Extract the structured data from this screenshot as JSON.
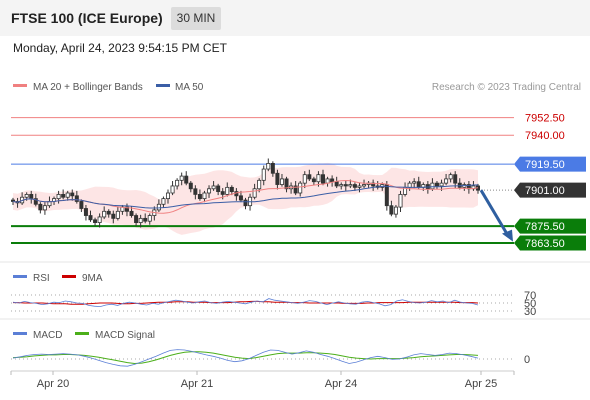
{
  "header": {
    "title": "FTSE 100 (ICE Europe)",
    "interval": "30 MIN"
  },
  "datetime": "Monday, April 24, 2023 9:54:15 PM CET",
  "legend": {
    "bb": "MA 20 + Bollinger Bands",
    "ma50": "MA 50",
    "copyright": "Research © 2023 Trading Central",
    "rsi": "RSI",
    "ma9": "9MA",
    "macd": "MACD",
    "macd_signal": "MACD Signal"
  },
  "colors": {
    "resistance": "#f08080",
    "resistance_text": "#cc0000",
    "pivot": "#4b7be5",
    "current": "#333333",
    "support": "#0a7d0a",
    "candle_up": "#333333",
    "candle_down": "#333333",
    "bollinger_fill": "#fde0e0",
    "ma20": "#f08080",
    "ma50": "#3b5ea6",
    "arrow": "#2f5fa0",
    "rsi": "#5b7fd6",
    "rsi_ma9": "#cc0000",
    "macd": "#5b7fd6",
    "macd_signal": "#4caf1a"
  },
  "chart_data": [
    {
      "type": "candlestick",
      "x_ticks": [
        "Apr 20",
        "Apr 21",
        "Apr 24",
        "Apr 25"
      ],
      "ylim": [
        7855,
        7965
      ],
      "levels": [
        {
          "label": "7952.50",
          "value": 7952.5,
          "kind": "resistance"
        },
        {
          "label": "7940.00",
          "value": 7940.0,
          "kind": "resistance"
        },
        {
          "label": "7919.50",
          "value": 7919.5,
          "kind": "pivot"
        },
        {
          "label": "7901.00",
          "value": 7901.0,
          "kind": "current"
        },
        {
          "label": "7875.50",
          "value": 7875.5,
          "kind": "support"
        },
        {
          "label": "7863.50",
          "value": 7863.5,
          "kind": "support"
        }
      ],
      "close": [
        7893,
        7892,
        7896,
        7898,
        7895,
        7891,
        7887,
        7890,
        7893,
        7895,
        7898,
        7896,
        7899,
        7897,
        7893,
        7888,
        7883,
        7880,
        7878,
        7882,
        7886,
        7884,
        7881,
        7886,
        7889,
        7886,
        7883,
        7878,
        7881,
        7879,
        7883,
        7887,
        7891,
        7895,
        7899,
        7904,
        7908,
        7911,
        7906,
        7902,
        7898,
        7895,
        7899,
        7902,
        7904,
        7900,
        7898,
        7903,
        7900,
        7897,
        7894,
        7890,
        7896,
        7902,
        7908,
        7916,
        7920,
        7913,
        7905,
        7909,
        7902,
        7904,
        7899,
        7906,
        7912,
        7909,
        7907,
        7912,
        7906,
        7909,
        7907,
        7904,
        7905,
        7904,
        7905,
        7903,
        7904,
        7905,
        7906,
        7904,
        7903,
        7905,
        7890,
        7884,
        7889,
        7898,
        7903,
        7906,
        7907,
        7903,
        7905,
        7902,
        7906,
        7904,
        7906,
        7909,
        7912,
        7906,
        7903,
        7905,
        7902,
        7904,
        7901
      ],
      "annotation": "projected move down toward 7863.50"
    },
    {
      "type": "line",
      "name": "RSI",
      "series": [
        "RSI",
        "9MA"
      ],
      "y_ticks": [
        "70",
        "50",
        "30"
      ],
      "rsi": [
        52,
        50,
        54,
        51,
        49,
        46,
        48,
        52,
        51,
        55,
        53,
        50,
        49,
        44,
        42,
        41,
        45,
        47,
        44,
        49,
        52,
        50,
        47,
        45,
        49,
        47,
        51,
        54,
        57,
        55,
        52,
        50,
        53,
        55,
        51,
        49,
        52,
        54,
        52,
        50,
        48,
        52,
        55,
        53,
        61,
        57,
        55,
        53,
        51,
        49,
        52,
        56,
        54,
        50,
        46,
        50,
        53,
        50,
        48,
        47,
        52,
        54,
        51,
        48,
        43,
        46,
        55,
        58,
        54,
        51,
        50,
        52,
        56,
        53,
        55,
        51,
        57,
        52,
        50,
        49,
        45
      ],
      "ma9": [
        51,
        51,
        50,
        50,
        50,
        50,
        49,
        48,
        48,
        48,
        47,
        47,
        47,
        48,
        49,
        50,
        50,
        50,
        49,
        48,
        48,
        49,
        49,
        50,
        51,
        52,
        52,
        52,
        53,
        53,
        53,
        52,
        52,
        52,
        51,
        51,
        51,
        51,
        52,
        53,
        53,
        54,
        54,
        53,
        53,
        52,
        52,
        52,
        51,
        51,
        51,
        50,
        50,
        50,
        50,
        50,
        50,
        49,
        49,
        49,
        49,
        50,
        50,
        51,
        51,
        51,
        51,
        51,
        52,
        52,
        52,
        52,
        52,
        52,
        52,
        52,
        52,
        51,
        51,
        51,
        50
      ]
    },
    {
      "type": "line",
      "name": "MACD",
      "series": [
        "MACD",
        "MACD Signal"
      ],
      "y_ticks": [
        "0"
      ],
      "macd": [
        0.2,
        0.5,
        0.8,
        1.0,
        1.1,
        1.0,
        1.1,
        1.2,
        1.1,
        0.9,
        0.6,
        0.2,
        -0.3,
        -0.8,
        -1.2,
        -1.5,
        -1.6,
        -1.2,
        -0.6,
        0.0,
        0.6,
        1.3,
        1.9,
        2.1,
        2.0,
        1.7,
        1.3,
        0.9,
        0.6,
        0.2,
        -0.3,
        -0.6,
        -0.4,
        0.1,
        0.8,
        1.5,
        2.0,
        1.9,
        1.5,
        1.1,
        1.4,
        1.8,
        1.5,
        1.0,
        0.6,
        0.1,
        -0.5,
        -1.0,
        -0.7,
        -0.2,
        0.3,
        0.6,
        0.3,
        -0.1,
        0.0,
        0.4,
        0.9,
        1.2,
        1.0,
        0.8,
        1.0,
        1.3,
        1.2,
        0.9,
        0.6,
        0.2
      ],
      "signal": [
        0.3,
        0.4,
        0.5,
        0.7,
        0.8,
        0.9,
        0.9,
        1.0,
        1.0,
        0.9,
        0.8,
        0.6,
        0.4,
        0.1,
        -0.2,
        -0.5,
        -0.8,
        -1.0,
        -0.9,
        -0.6,
        -0.2,
        0.3,
        0.8,
        1.2,
        1.5,
        1.6,
        1.6,
        1.5,
        1.3,
        1.0,
        0.7,
        0.4,
        0.2,
        0.1,
        0.3,
        0.6,
        0.9,
        1.2,
        1.3,
        1.3,
        1.3,
        1.4,
        1.4,
        1.3,
        1.2,
        1.0,
        0.7,
        0.4,
        0.2,
        0.1,
        0.0,
        0.1,
        0.1,
        0.1,
        0.1,
        0.2,
        0.3,
        0.5,
        0.6,
        0.7,
        0.8,
        0.9,
        1.0,
        1.0,
        0.9,
        0.8
      ]
    }
  ]
}
